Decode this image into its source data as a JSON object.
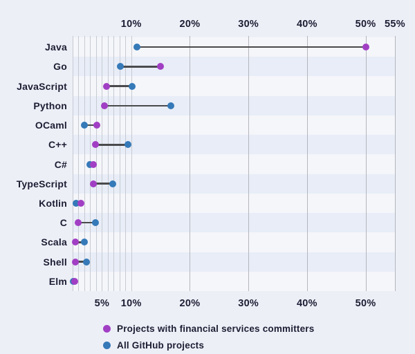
{
  "chart_data": {
    "type": "dumbbell",
    "orientation": "horizontal",
    "title": "",
    "xlabel": "",
    "ylabel": "",
    "categories": [
      "Java",
      "Go",
      "JavaScript",
      "Python",
      "OCaml",
      "C++",
      "C#",
      "TypeScript",
      "Kotlin",
      "C",
      "Scala",
      "Shell",
      "Elm"
    ],
    "series": [
      {
        "name": "Projects with financial services committers",
        "marker_color": "#a13fc4",
        "values": [
          50,
          15,
          5.8,
          5.4,
          4.1,
          3.9,
          3.5,
          3.5,
          1.4,
          0.9,
          0.5,
          0.5,
          0.3
        ]
      },
      {
        "name": "All GitHub projects",
        "marker_color": "#3579b8",
        "values": [
          11,
          8.2,
          10.2,
          16.8,
          2.0,
          9.5,
          2.9,
          6.8,
          0.6,
          3.9,
          2.0,
          2.4,
          0.1
        ]
      }
    ],
    "x_axis": {
      "min": 0,
      "max": 55,
      "unit": "%",
      "top_ticks": [
        {
          "value": 10,
          "label": "10%"
        },
        {
          "value": 20,
          "label": "20%"
        },
        {
          "value": 30,
          "label": "30%"
        },
        {
          "value": 40,
          "label": "40%"
        },
        {
          "value": 50,
          "label": "50%"
        },
        {
          "value": 55,
          "label": "55%"
        }
      ],
      "bottom_ticks": [
        {
          "value": 5,
          "label": "5%"
        },
        {
          "value": 10,
          "label": "10%"
        },
        {
          "value": 20,
          "label": "20%"
        },
        {
          "value": 30,
          "label": "30%"
        },
        {
          "value": 40,
          "label": "40%"
        },
        {
          "value": 50,
          "label": "50%"
        }
      ],
      "gridlines_minor": [
        0,
        1,
        2,
        3,
        4,
        5,
        6,
        7,
        8,
        9,
        10
      ],
      "gridlines_major": [
        20,
        30,
        40,
        50,
        55
      ]
    },
    "grid": true,
    "legend_position": "bottom-left",
    "row_banding": true
  },
  "legend": {
    "items": [
      {
        "label": "Projects with financial services committers",
        "color": "#a13fc4"
      },
      {
        "label": "All GitHub projects",
        "color": "#3579b8"
      }
    ]
  },
  "colors": {
    "background": "#edeff7",
    "stripe_light": "#f5f6fa",
    "stripe_dark": "#e8edf7",
    "gridline_minor": "#c7cad2",
    "gridline_major": "#b3b6bd",
    "connector": "#4a4a4c",
    "text": "#1d1d33",
    "purple": "#a13fc4",
    "blue": "#3579b8"
  }
}
